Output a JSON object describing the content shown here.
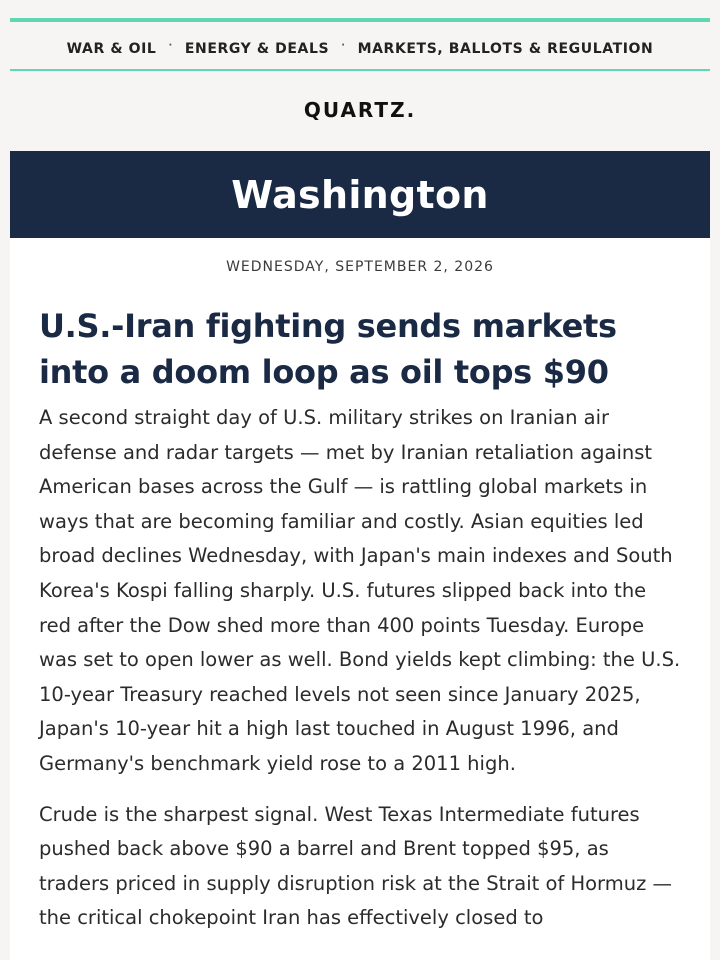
{
  "nav": {
    "items": [
      {
        "label": "WAR & OIL"
      },
      {
        "label": "ENERGY & DEALS"
      },
      {
        "label": "MARKETS, BALLOTS & REGULATION"
      }
    ],
    "separator": "·"
  },
  "brand": {
    "logo_text": "QUARTZ."
  },
  "colors": {
    "accent_rule": "#5fd7b4",
    "banner_bg": "#1b2a44",
    "headline": "#1b2a44"
  },
  "newsletter": {
    "title": "Washington",
    "date": "WEDNESDAY, SEPTEMBER 2, 2026"
  },
  "article": {
    "headline": "U.S.-Iran fighting sends markets into a doom loop as oil tops $90",
    "paragraphs": [
      "A second straight day of U.S. military strikes on Iranian air defense and radar targets — met by Iranian retaliation against American bases across the Gulf — is rattling global markets in ways that are becoming familiar and costly. Asian equities led broad declines Wednesday, with Japan's main indexes and South Korea's Kospi falling sharply. U.S. futures slipped back into the red after the Dow shed more than 400 points Tuesday. Europe was set to open lower as well. Bond yields kept climbing: the U.S. 10-year Treasury reached levels not seen since January 2025, Japan's 10-year hit a high last touched in August 1996, and Germany's benchmark yield rose to a 2011 high.",
      "Crude is the sharpest signal. West Texas Intermediate futures pushed back above $90 a barrel and Brent topped $95, as traders priced in supply disruption risk at the Strait of Hormuz — the critical chokepoint Iran has effectively closed to"
    ]
  }
}
